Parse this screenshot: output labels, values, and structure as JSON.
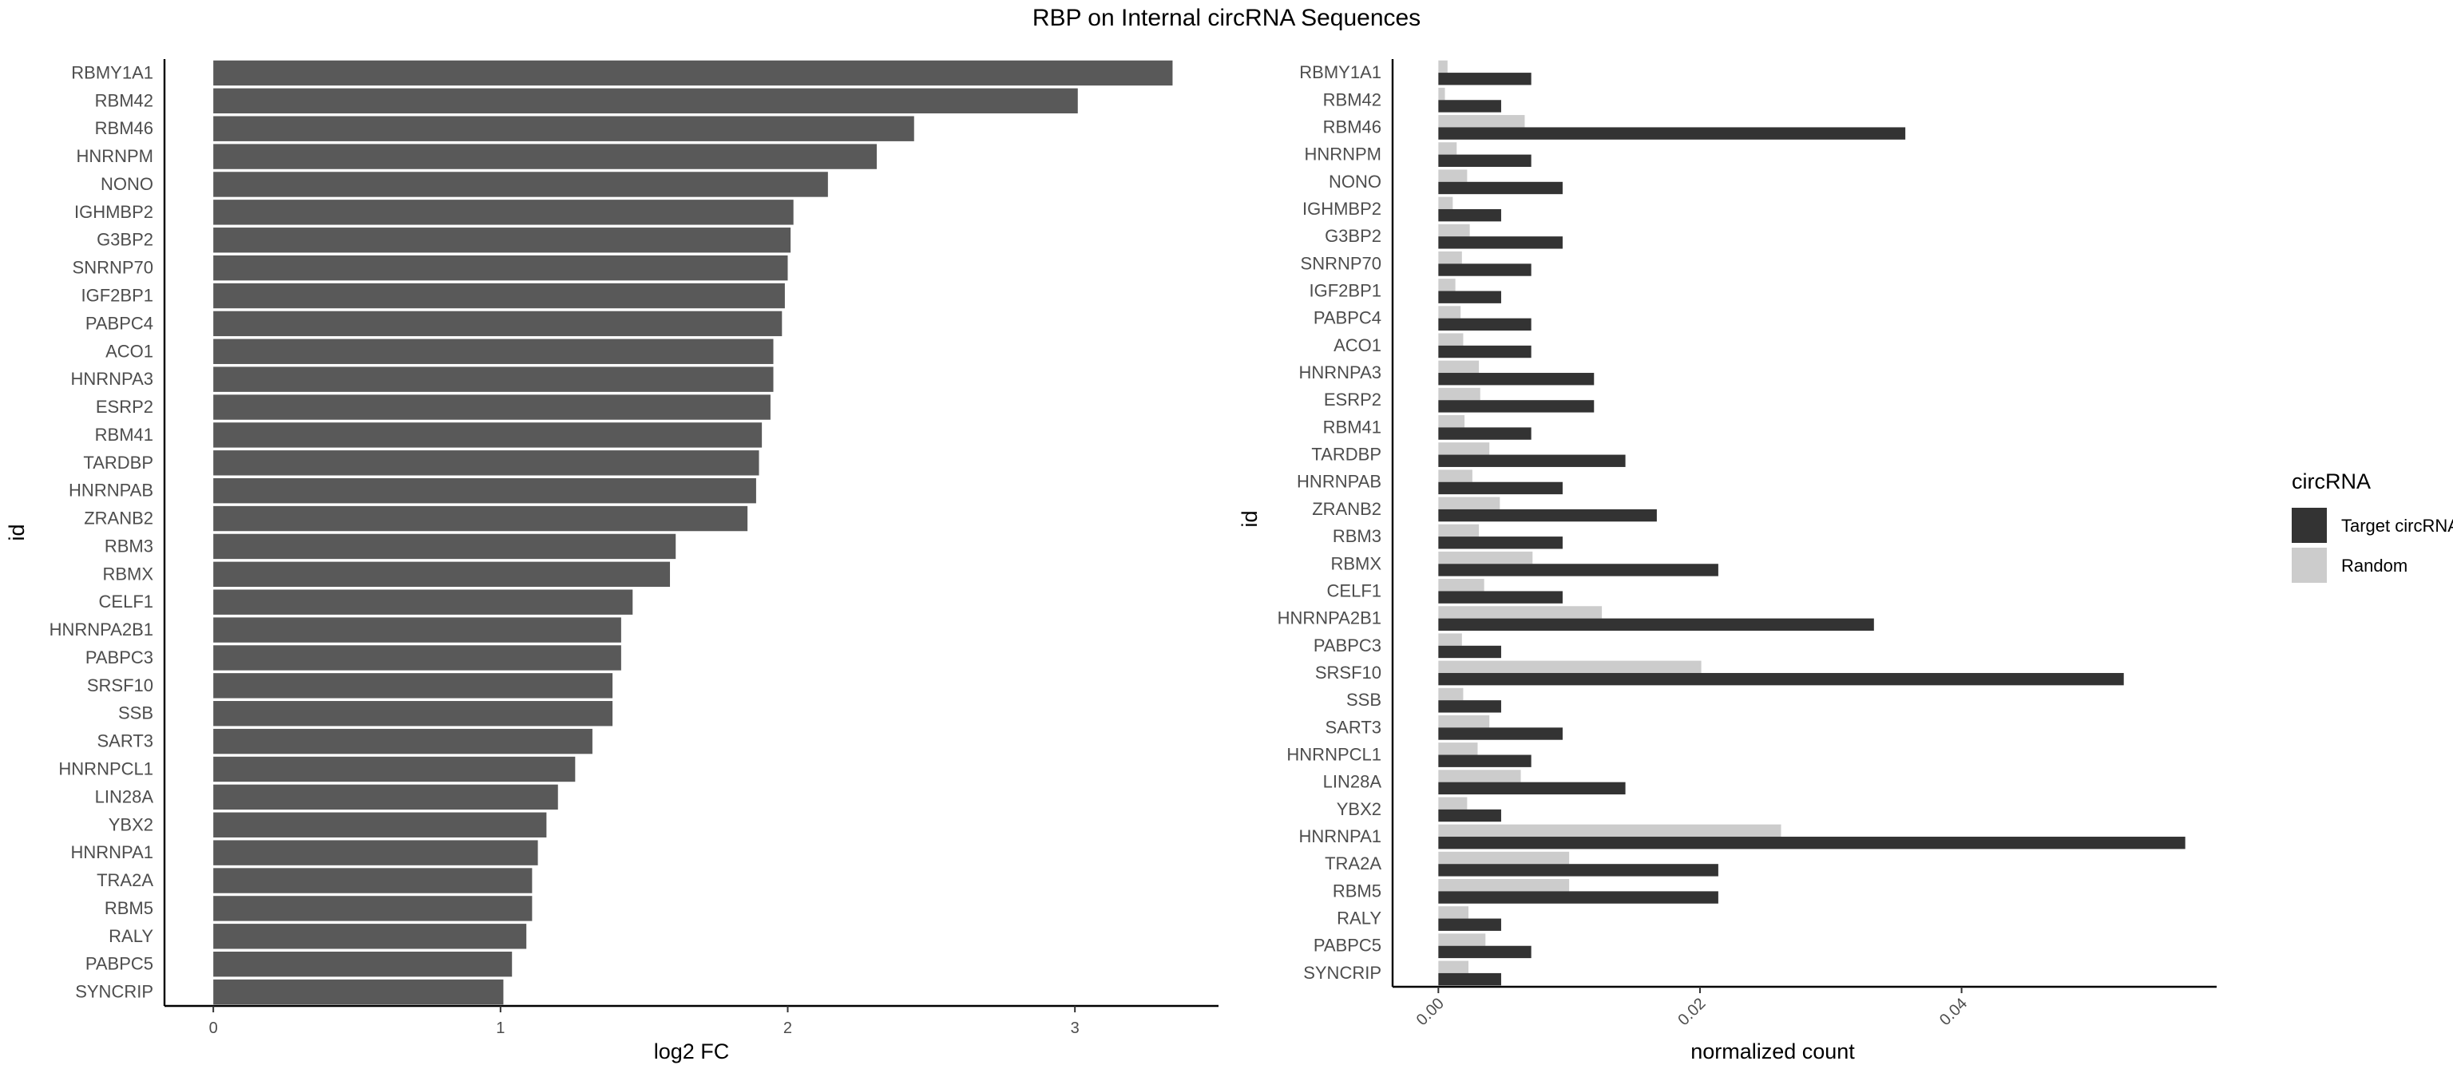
{
  "title": "RBP on Internal circRNA Sequences",
  "chart_data": [
    {
      "type": "bar",
      "orientation": "horizontal",
      "xlabel": "log2 FC",
      "ylabel": "id",
      "xlim": [
        -0.17,
        3.5
      ],
      "xticks": [
        0,
        1,
        2,
        3
      ],
      "xtick_labels": [
        "0",
        "1",
        "2",
        "3"
      ],
      "bar_color": "#595959",
      "categories": [
        "RBMY1A1",
        "RBM42",
        "RBM46",
        "HNRNPM",
        "NONO",
        "IGHMBP2",
        "G3BP2",
        "SNRNP70",
        "IGF2BP1",
        "PABPC4",
        "ACO1",
        "HNRNPA3",
        "ESRP2",
        "RBM41",
        "TARDBP",
        "HNRNPAB",
        "ZRANB2",
        "RBM3",
        "RBMX",
        "CELF1",
        "HNRNPA2B1",
        "PABPC3",
        "SRSF10",
        "SSB",
        "SART3",
        "HNRNPCL1",
        "LIN28A",
        "YBX2",
        "HNRNPA1",
        "TRA2A",
        "RBM5",
        "RALY",
        "PABPC5",
        "SYNCRIP"
      ],
      "values": [
        3.34,
        3.01,
        2.44,
        2.31,
        2.14,
        2.02,
        2.01,
        2.0,
        1.99,
        1.98,
        1.95,
        1.95,
        1.94,
        1.91,
        1.9,
        1.89,
        1.86,
        1.61,
        1.59,
        1.46,
        1.42,
        1.42,
        1.39,
        1.39,
        1.32,
        1.26,
        1.2,
        1.16,
        1.13,
        1.11,
        1.11,
        1.09,
        1.04,
        1.01
      ]
    },
    {
      "type": "bar",
      "orientation": "horizontal",
      "xlabel": "normalized count",
      "ylabel": "id",
      "xlim": [
        -0.0035,
        0.0595
      ],
      "xticks": [
        0,
        0.02,
        0.04
      ],
      "xtick_labels": [
        "0.00",
        "0.02",
        "0.04"
      ],
      "categories": [
        "RBMY1A1",
        "RBM42",
        "RBM46",
        "HNRNPM",
        "NONO",
        "IGHMBP2",
        "G3BP2",
        "SNRNP70",
        "IGF2BP1",
        "PABPC4",
        "ACO1",
        "HNRNPA3",
        "ESRP2",
        "RBM41",
        "TARDBP",
        "HNRNPAB",
        "ZRANB2",
        "RBM3",
        "RBMX",
        "CELF1",
        "HNRNPA2B1",
        "PABPC3",
        "SRSF10",
        "SSB",
        "SART3",
        "HNRNPCL1",
        "LIN28A",
        "YBX2",
        "HNRNPA1",
        "TRA2A",
        "RBM5",
        "RALY",
        "PABPC5",
        "SYNCRIP"
      ],
      "series": [
        {
          "name": "Target circRNAs",
          "color": "#333333",
          "values": [
            0.0071,
            0.0048,
            0.0357,
            0.0071,
            0.0095,
            0.0048,
            0.0095,
            0.0071,
            0.0048,
            0.0071,
            0.0071,
            0.0119,
            0.0119,
            0.0071,
            0.0143,
            0.0095,
            0.0167,
            0.0095,
            0.0214,
            0.0095,
            0.0333,
            0.0048,
            0.0524,
            0.0048,
            0.0095,
            0.0071,
            0.0143,
            0.0048,
            0.0571,
            0.0214,
            0.0214,
            0.0048,
            0.0071,
            0.0048
          ]
        },
        {
          "name": "Random",
          "color": "#cccccc",
          "values": [
            0.0007,
            0.0005,
            0.0066,
            0.0014,
            0.0022,
            0.0011,
            0.0024,
            0.0018,
            0.0013,
            0.0017,
            0.0019,
            0.0031,
            0.0032,
            0.002,
            0.0039,
            0.0026,
            0.0047,
            0.0031,
            0.0072,
            0.0035,
            0.0125,
            0.0018,
            0.0201,
            0.0019,
            0.0039,
            0.003,
            0.0063,
            0.0022,
            0.0262,
            0.01,
            0.01,
            0.0023,
            0.0036,
            0.0023
          ]
        }
      ],
      "legend": {
        "title": "circRNA",
        "position": "right"
      }
    }
  ]
}
